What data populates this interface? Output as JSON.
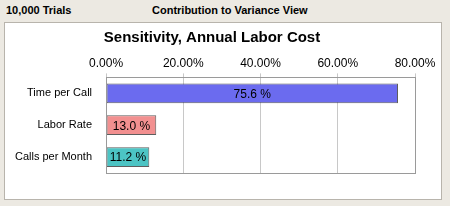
{
  "header": {
    "trials": "10,000 Trials",
    "view": "Contribution to Variance View"
  },
  "chart_data": {
    "type": "bar",
    "orientation": "horizontal",
    "title": "Sensitivity, Annual Labor Cost",
    "categories": [
      "Time per Call",
      "Labor Rate",
      "Calls per Month"
    ],
    "values": [
      75.6,
      13.0,
      11.2
    ],
    "value_labels": [
      "75.6 %",
      "13.0 %",
      "11.2 %"
    ],
    "colors": [
      "#6b6bef",
      "#f29090",
      "#4cc4c4"
    ],
    "xlim": [
      0,
      80
    ],
    "xticks": [
      {
        "value": 0,
        "label": "0.00%"
      },
      {
        "value": 20,
        "label": "20.00%"
      },
      {
        "value": 40,
        "label": "40.00%"
      },
      {
        "value": 60,
        "label": "60.00%"
      },
      {
        "value": 80,
        "label": "80.00%"
      }
    ],
    "grid": true,
    "data_labels": true
  }
}
